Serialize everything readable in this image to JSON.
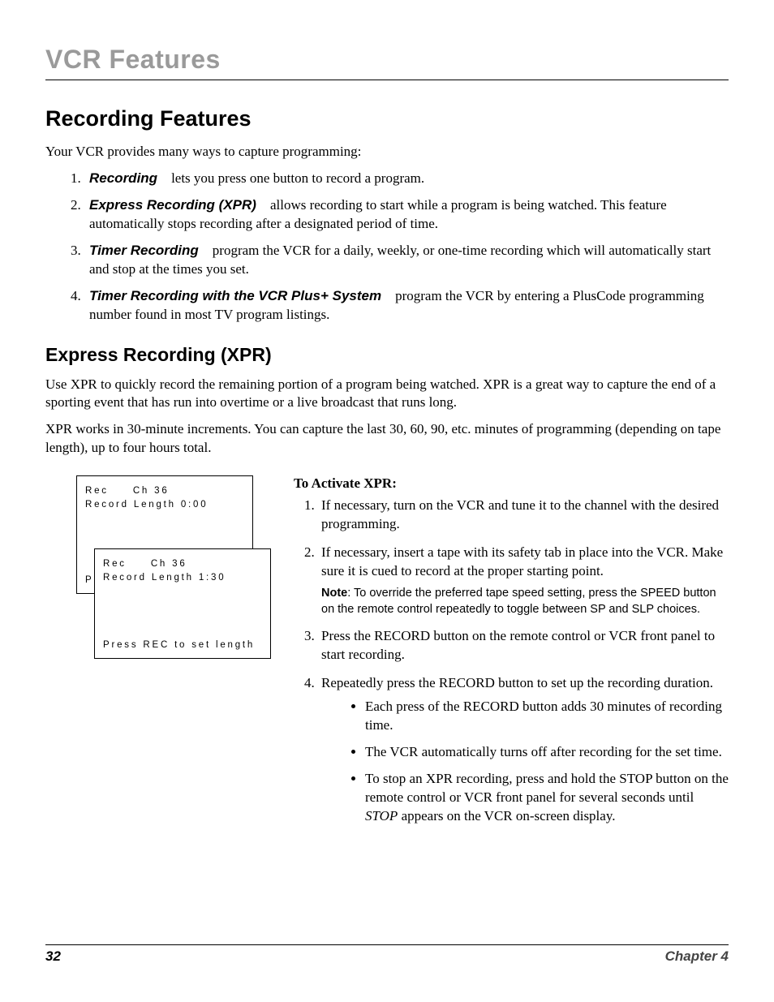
{
  "header": {
    "chapter_title": "VCR Features"
  },
  "section": {
    "title": "Recording Features",
    "intro": "Your VCR provides many ways to capture programming:",
    "methods": [
      {
        "term": "Recording",
        "desc": " lets you press one button to record a program."
      },
      {
        "term": "Express Recording (XPR)",
        "desc": " allows recording to start while a program is being watched. This feature automatically stops recording after a designated period of time."
      },
      {
        "term": "Timer Recording",
        "desc": " program the VCR for a daily, weekly, or one-time recording which will automatically start and stop at the times you set."
      },
      {
        "term": "Timer Recording with the VCR Plus+ System",
        "desc": " program the VCR by entering a PlusCode programming number found in most TV program listings."
      }
    ]
  },
  "xpr": {
    "title": "Express Recording (XPR)",
    "p1": "Use XPR to quickly record the remaining portion of a program being watched. XPR is a great way to capture the end of a sporting event that has run into overtime or a live broadcast that runs long.",
    "p2": "XPR works in 30-minute increments. You can capture the last 30, 60, 90, etc. minutes of programming (depending on tape length), up to four hours total.",
    "osd_back": {
      "l1": "Rec     Ch 36",
      "l2": "Record Length 0:00",
      "bottom": "Pr"
    },
    "osd_front": {
      "l1": "Rec     Ch 36",
      "l2": "Record Length 1:30",
      "bottom": "Press REC to set length"
    },
    "activate_head": "To Activate XPR:",
    "steps": {
      "s1": "If necessary, turn on the VCR and tune it to the channel with the desired programming.",
      "s2": "If necessary, insert a tape with its safety tab in place into the VCR. Make sure it is cued to record at the proper starting point.",
      "note_label": "Note",
      "note": ": To override the preferred tape speed setting, press the SPEED button on the remote control repeatedly to toggle between SP and SLP choices.",
      "s3": "Press the RECORD button on the remote control or VCR front panel to start recording.",
      "s4": "Repeatedly press the RECORD button to set up the recording duration.",
      "bullets": {
        "b1": "Each press of the RECORD button adds 30 minutes of recording time.",
        "b2": "The VCR automatically turns off after recording for the set time.",
        "b3a": "To stop an XPR recording, press and hold the STOP button on the remote control or VCR front panel for several seconds until ",
        "b3_ital": "STOP",
        "b3b": " appears on the VCR on-screen display."
      }
    }
  },
  "footer": {
    "page_number": "32",
    "chapter": "Chapter 4"
  }
}
